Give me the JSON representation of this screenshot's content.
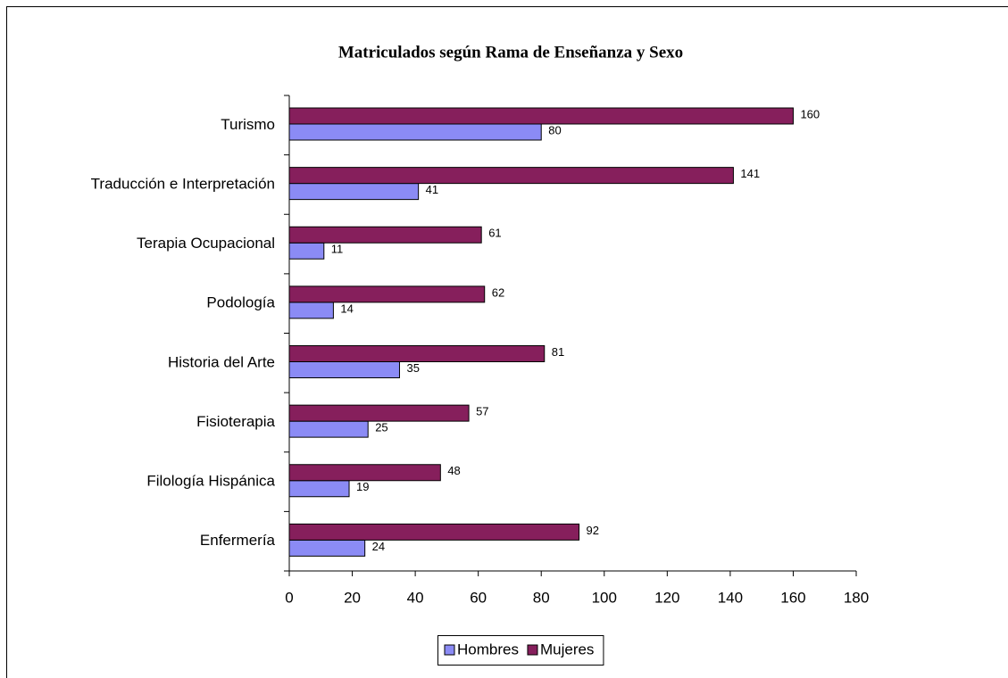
{
  "chart_data": {
    "type": "hbar",
    "title": "Matriculados según Rama de Enseñanza y Sexo",
    "categories": [
      "Turismo",
      "Traducción e Interpretación",
      "Terapia Ocupacional",
      "Podología",
      "Historia del Arte",
      "Fisioterapia",
      "Filología Hispánica",
      "Enfermería"
    ],
    "series": [
      {
        "name": "Hombres",
        "color": "#8b8bf5",
        "values": [
          80,
          41,
          11,
          14,
          35,
          25,
          19,
          24
        ]
      },
      {
        "name": "Mujeres",
        "color": "#861f5c",
        "values": [
          160,
          141,
          61,
          62,
          81,
          57,
          48,
          92
        ]
      }
    ],
    "xlim": [
      0,
      180
    ],
    "xticks": [
      0,
      20,
      40,
      60,
      80,
      100,
      120,
      140,
      160,
      180
    ],
    "grid": false,
    "legend": "bottom"
  }
}
